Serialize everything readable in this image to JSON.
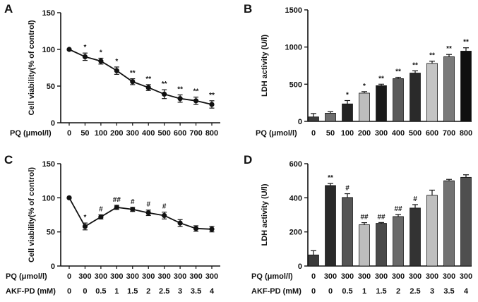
{
  "chart_data": [
    {
      "panel": "A",
      "type": "line",
      "ylabel": "Cell viability(% of control)",
      "ylim": [
        0,
        150
      ],
      "yticks": [
        0,
        50,
        100,
        150
      ],
      "row_labels": [
        "PQ  (μmol/l)"
      ],
      "rows": [
        [
          "0",
          "50",
          "100",
          "200",
          "300",
          "400",
          "500",
          "600",
          "700",
          "800"
        ]
      ],
      "values": [
        100,
        90,
        84,
        71,
        56,
        48,
        39,
        33,
        30,
        25
      ],
      "errors": [
        0,
        5,
        4,
        5,
        4,
        4,
        6,
        5,
        5,
        5
      ],
      "annotations": [
        "",
        "*",
        "*",
        "*",
        "**",
        "**",
        "**",
        "**",
        "**",
        "**"
      ]
    },
    {
      "panel": "B",
      "type": "bar",
      "ylabel": "LDH activity (U/l)",
      "ylim": [
        0,
        1500
      ],
      "yticks": [
        0,
        500,
        1000,
        1500
      ],
      "row_labels": [
        "PQ  (μmol/l)"
      ],
      "rows": [
        [
          "0",
          "50",
          "100",
          "200",
          "300",
          "400",
          "500",
          "600",
          "700",
          "800"
        ]
      ],
      "values": [
        60,
        110,
        235,
        380,
        480,
        575,
        650,
        780,
        870,
        945
      ],
      "errors": [
        45,
        20,
        45,
        20,
        20,
        18,
        30,
        30,
        30,
        45
      ],
      "annotations": [
        "",
        "",
        "*",
        "*",
        "**",
        "**",
        "**",
        "**",
        "**",
        "**"
      ],
      "bar_colors": [
        "#3b3b3b",
        "#6e6e6e",
        "#232323",
        "#bdbdbd",
        "#1a1a1a",
        "#5a5a5a",
        "#2a2a2a",
        "#c4c4c4",
        "#7a7a7a",
        "#0f0f0f"
      ]
    },
    {
      "panel": "C",
      "type": "line",
      "ylabel": "Cell viability(% of control)",
      "ylim": [
        0,
        150
      ],
      "yticks": [
        0,
        50,
        100,
        150
      ],
      "row_labels": [
        "PQ  (μmol/l)",
        "AKF-PD (mM)"
      ],
      "rows": [
        [
          "0",
          "300",
          "300",
          "300",
          "300",
          "300",
          "300",
          "300",
          "300",
          "300"
        ],
        [
          "0",
          "0",
          "0.5",
          "1",
          "1.5",
          "2",
          "2.5",
          "3",
          "3.5",
          "4"
        ]
      ],
      "values": [
        100,
        58,
        72,
        86,
        83,
        78,
        74,
        63,
        55,
        54
      ],
      "errors": [
        0,
        5,
        3,
        3,
        3,
        4,
        5,
        5,
        4,
        4
      ],
      "annotations": [
        "",
        "*",
        "#",
        "##",
        "#",
        "#",
        "#",
        "",
        "",
        ""
      ]
    },
    {
      "panel": "D",
      "type": "bar",
      "ylabel": "LDH activity (U/l)",
      "ylim": [
        0,
        600
      ],
      "yticks": [
        0,
        200,
        400,
        600
      ],
      "row_labels": [
        "PQ  (μmol/l)",
        "AKF-PD (mM)"
      ],
      "rows": [
        [
          "0",
          "300",
          "300",
          "300",
          "300",
          "300",
          "300",
          "300",
          "300",
          "300"
        ],
        [
          "0",
          "0",
          "0.5",
          "1",
          "1.5",
          "2",
          "2.5",
          "3",
          "3.5",
          "4"
        ]
      ],
      "values": [
        65,
        472,
        402,
        242,
        250,
        290,
        340,
        415,
        500,
        520
      ],
      "errors": [
        25,
        12,
        22,
        12,
        5,
        12,
        20,
        30,
        8,
        15
      ],
      "annotations": [
        "",
        "**",
        "#",
        "##",
        "##",
        "##",
        "#",
        "",
        "",
        ""
      ],
      "bar_colors": [
        "#3b3b3b",
        "#2a2a2a",
        "#555555",
        "#bdbdbd",
        "#4a4a4a",
        "#6a6a6a",
        "#333333",
        "#bfbfbf",
        "#727272",
        "#4f4f4f"
      ]
    }
  ]
}
